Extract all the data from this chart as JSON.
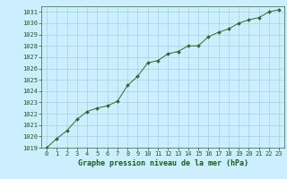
{
  "x": [
    0,
    1,
    2,
    3,
    4,
    5,
    6,
    7,
    8,
    9,
    10,
    11,
    12,
    13,
    14,
    15,
    16,
    17,
    18,
    19,
    20,
    21,
    22,
    23
  ],
  "y": [
    1019.0,
    1019.8,
    1020.5,
    1021.5,
    1022.2,
    1022.5,
    1022.7,
    1023.1,
    1024.5,
    1025.3,
    1026.5,
    1026.7,
    1027.3,
    1027.5,
    1028.0,
    1028.0,
    1028.8,
    1029.2,
    1029.5,
    1030.0,
    1030.3,
    1030.5,
    1031.0,
    1031.2
  ],
  "line_color": "#2d6a2d",
  "marker": "D",
  "marker_size": 2.0,
  "bg_color": "#cceeff",
  "grid_color": "#99cccc",
  "xlabel": "Graphe pression niveau de la mer (hPa)",
  "xlabel_color": "#1a5c1a",
  "tick_color": "#1a5c1a",
  "axis_color": "#2d6a2d",
  "ylim": [
    1019,
    1031.5
  ],
  "xlim": [
    -0.5,
    23.5
  ],
  "yticks": [
    1019,
    1020,
    1021,
    1022,
    1023,
    1024,
    1025,
    1026,
    1027,
    1028,
    1029,
    1030,
    1031
  ],
  "xticks": [
    0,
    1,
    2,
    3,
    4,
    5,
    6,
    7,
    8,
    9,
    10,
    11,
    12,
    13,
    14,
    15,
    16,
    17,
    18,
    19,
    20,
    21,
    22,
    23
  ],
  "tick_fontsize": 5.0,
  "xlabel_fontsize": 6.0,
  "linewidth": 0.7
}
